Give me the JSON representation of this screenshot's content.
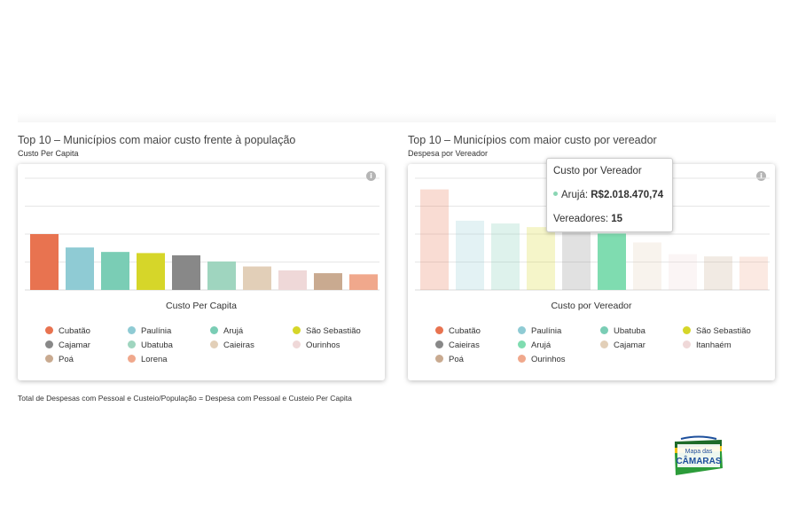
{
  "sections": [
    {
      "title": "Top 10 – Municípios com maior custo frente à população",
      "subtitle": "Custo Per Capita",
      "caption": "Custo Per Capita"
    },
    {
      "title": "Top 10 – Municípios com maior custo por vereador",
      "subtitle": "Despesa por Vereador",
      "caption": "Custo por Vereador"
    }
  ],
  "formula": "Total de Despesas com Pessoal e Custeio/População = Despesa com Pessoal e Custeio Per Capita",
  "tooltip": {
    "title": "Custo por Vereador",
    "series_label": "Arujá:",
    "value": "R$2.018.470,74",
    "count_label": "Vereadores:",
    "count_value": "15"
  },
  "logo": {
    "line1": "Mapa das",
    "line2": "CÂMARAS"
  },
  "icons": {
    "info": "info-icon"
  },
  "chart_data": [
    {
      "type": "bar",
      "title": "Top 10 – Municípios com maior custo frente à população",
      "subtitle": "Custo Per Capita",
      "xlabel": "Custo Per Capita",
      "ylabel": "",
      "grid": true,
      "legend": "bottom",
      "categories": [
        "Cubatão",
        "Paulínia",
        "Arujá",
        "São Sebastião",
        "Cajamar",
        "Ubatuba",
        "Caieiras",
        "Ourinhos",
        "Poá",
        "Lorena"
      ],
      "values": [
        100,
        76,
        68,
        66,
        62,
        51,
        42,
        35,
        30,
        28
      ],
      "ylim": [
        0,
        200
      ],
      "colors": [
        "#e87350",
        "#8fcbd4",
        "#7acdb5",
        "#d6d629",
        "#888888",
        "#9fd5bf",
        "#e2cfb8",
        "#efd8d8",
        "#c9aa90",
        "#f0a88c"
      ]
    },
    {
      "type": "bar",
      "title": "Top 10 – Municípios com maior custo por vereador",
      "subtitle": "Despesa por Vereador",
      "xlabel": "Custo por Vereador",
      "ylabel": "",
      "grid": true,
      "legend": "bottom",
      "categories": [
        "Cubatão",
        "Paulínia",
        "Ubatuba",
        "São Sebastião",
        "Caieiras",
        "Arujá",
        "Cajamar",
        "Itanhaém",
        "Poá",
        "Ourinhos"
      ],
      "values": [
        3600000,
        2480000,
        2380000,
        2250000,
        2080000,
        2018470.74,
        1700000,
        1280000,
        1200000,
        1190000
      ],
      "ylim": [
        0,
        4000000
      ],
      "highlight_index": 5,
      "colors": [
        "#e87350",
        "#8fcbd4",
        "#7acdb5",
        "#d6d629",
        "#888888",
        "#7fdcb0",
        "#e2cfb8",
        "#efd8d8",
        "#c9aa90",
        "#f0a88c"
      ]
    }
  ]
}
